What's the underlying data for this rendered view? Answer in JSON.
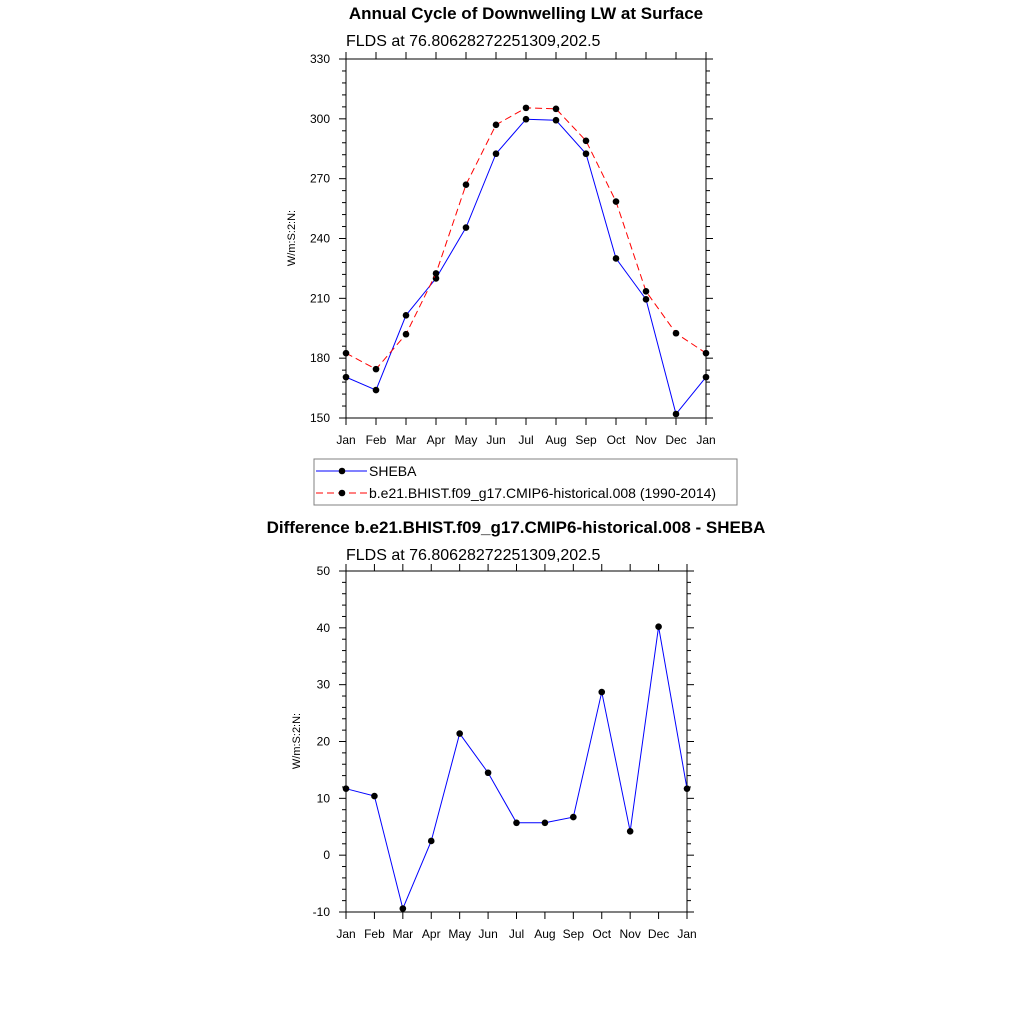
{
  "chart_data": [
    {
      "type": "line",
      "title": "Annual Cycle of Downwelling LW at Surface",
      "subtitle": "FLDS at 76.80628272251309,202.5",
      "ylabel": "W/m:S:2:N:",
      "xlabel": "",
      "ylim": [
        150,
        330
      ],
      "yticks": [
        150,
        180,
        210,
        240,
        270,
        300,
        330
      ],
      "categories": [
        "Jan",
        "Feb",
        "Mar",
        "Apr",
        "May",
        "Jun",
        "Jul",
        "Aug",
        "Sep",
        "Oct",
        "Nov",
        "Dec",
        "Jan"
      ],
      "legend_position": "bottom",
      "series": [
        {
          "name": "SHEBA",
          "color": "#0000ff",
          "dash": "solid",
          "values": [
            170.5,
            164.0,
            201.5,
            220.0,
            245.5,
            282.5,
            299.8,
            299.3,
            282.5,
            230.0,
            209.5,
            152.0,
            170.5
          ]
        },
        {
          "name": "b.e21.BHIST.f09_g17.CMIP6-historical.008 (1990-2014)",
          "color": "#ff0000",
          "dash": "dashed",
          "values": [
            182.5,
            174.5,
            192.0,
            222.5,
            267.0,
            297.0,
            305.5,
            305.0,
            289.0,
            258.5,
            213.5,
            192.5,
            182.5
          ]
        }
      ]
    },
    {
      "type": "line",
      "title": "Difference b.e21.BHIST.f09_g17.CMIP6-historical.008 - SHEBA",
      "subtitle": "FLDS at 76.80628272251309,202.5",
      "ylabel": "W/m:S:2:N:",
      "xlabel": "",
      "ylim": [
        -10,
        50
      ],
      "yticks": [
        -10,
        0,
        10,
        20,
        30,
        40,
        50
      ],
      "categories": [
        "Jan",
        "Feb",
        "Mar",
        "Apr",
        "May",
        "Jun",
        "Jul",
        "Aug",
        "Sep",
        "Oct",
        "Nov",
        "Dec",
        "Jan"
      ],
      "series": [
        {
          "color": "#0000ff",
          "dash": "solid",
          "values": [
            11.7,
            10.4,
            -9.4,
            2.5,
            21.4,
            14.5,
            5.7,
            5.7,
            6.7,
            28.7,
            4.2,
            40.2,
            11.7
          ]
        }
      ]
    }
  ]
}
